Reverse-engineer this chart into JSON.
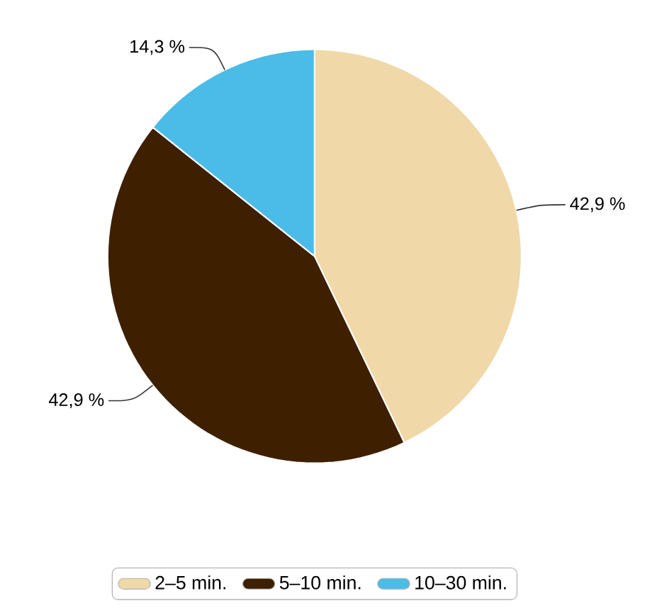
{
  "chart_data": {
    "type": "pie",
    "categories": [
      "2–5 min.",
      "5–10 min.",
      "10–30 min."
    ],
    "values": [
      42.9,
      42.9,
      14.3
    ],
    "colors": [
      "#f0d8a8",
      "#3e2000",
      "#4bbce8"
    ],
    "value_labels": [
      "42,9 %",
      "42,9 %",
      "14,3 %"
    ],
    "legend": "bottom"
  }
}
